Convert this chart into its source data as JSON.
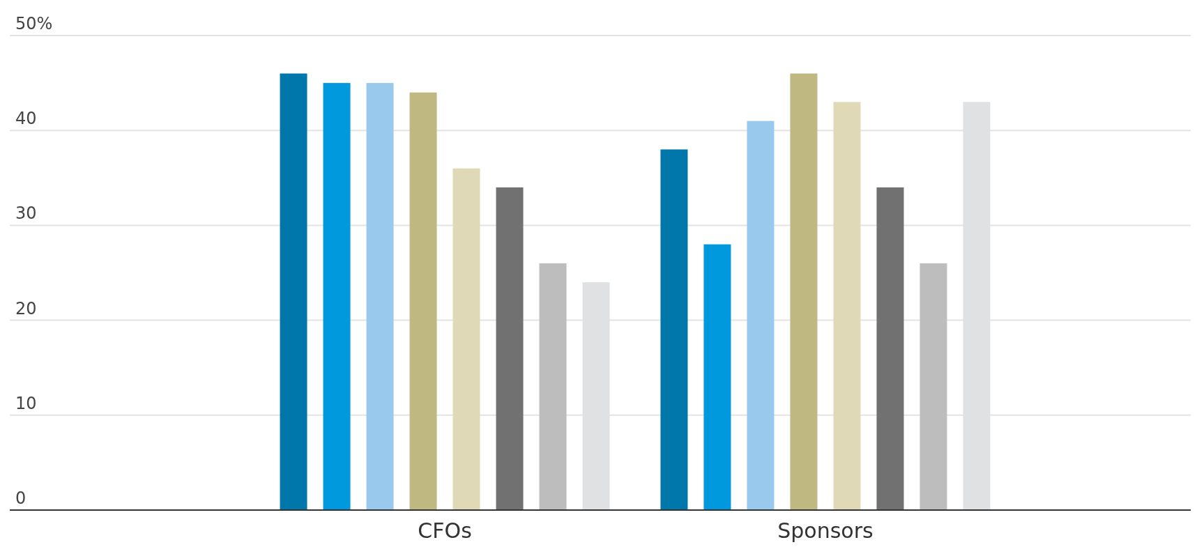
{
  "chart_data": {
    "type": "bar",
    "categories": [
      "CFOs",
      "Sponsors"
    ],
    "series": [
      {
        "color": "#0077aa",
        "values": [
          46,
          38
        ]
      },
      {
        "color": "#0099dd",
        "values": [
          45,
          28
        ]
      },
      {
        "color": "#99caee",
        "values": [
          45,
          41
        ]
      },
      {
        "color": "#bfb880",
        "values": [
          44,
          46
        ]
      },
      {
        "color": "#dfd9b8",
        "values": [
          36,
          43
        ]
      },
      {
        "color": "#717171",
        "values": [
          34,
          34
        ]
      },
      {
        "color": "#bdbdbd",
        "values": [
          26,
          26
        ]
      },
      {
        "color": "#e0e1e3",
        "values": [
          24,
          43
        ]
      }
    ],
    "ylim": [
      0,
      50
    ],
    "yticks": [
      0,
      10,
      20,
      30,
      40,
      {
        "value": 50,
        "label": "50%"
      }
    ],
    "grid": "y"
  }
}
